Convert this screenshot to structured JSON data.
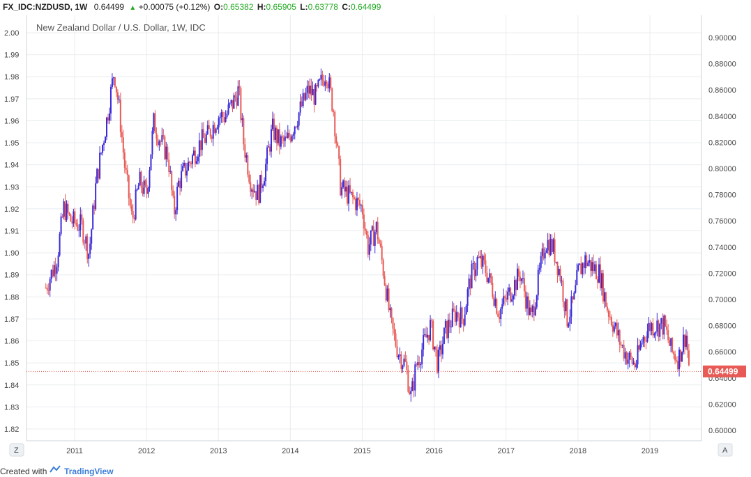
{
  "header": {
    "symbol": "FX_IDC:NZDUSD, 1W",
    "last": "0.64499",
    "change": "+0.00075 (+0.12%)",
    "o_label": "O:",
    "o_value": "0.65382",
    "h_label": "H:",
    "h_value": "0.65905",
    "l_label": "L:",
    "l_value": "0.63778",
    "c_label": "C:",
    "c_value": "0.64499"
  },
  "chart_title": "New Zealand Dollar / U.S. Dollar, 1W, IDC",
  "footer": {
    "created_with": "Created with",
    "brand": "TradingView"
  },
  "buttons": {
    "z": "Z",
    "a": "A"
  },
  "colors": {
    "up": "#3a2ad8",
    "down": "#e85a55",
    "grid": "#e8ecef",
    "price_tag": "#e85a55"
  },
  "chart_data": {
    "type": "candlestick",
    "series": [
      {
        "name": "FX_IDC:NZDUSD, 1W",
        "axis": "right",
        "points": [
          [
            2010.6,
            0.709
          ],
          [
            2010.75,
            0.73
          ],
          [
            2010.85,
            0.77
          ],
          [
            2010.95,
            0.76
          ],
          [
            2011.1,
            0.756
          ],
          [
            2011.2,
            0.735
          ],
          [
            2011.3,
            0.79
          ],
          [
            2011.45,
            0.838
          ],
          [
            2011.55,
            0.875
          ],
          [
            2011.62,
            0.845
          ],
          [
            2011.7,
            0.8
          ],
          [
            2011.8,
            0.76
          ],
          [
            2011.9,
            0.79
          ],
          [
            2012.0,
            0.78
          ],
          [
            2012.1,
            0.835
          ],
          [
            2012.2,
            0.82
          ],
          [
            2012.3,
            0.81
          ],
          [
            2012.38,
            0.765
          ],
          [
            2012.45,
            0.79
          ],
          [
            2012.55,
            0.8
          ],
          [
            2012.65,
            0.81
          ],
          [
            2012.75,
            0.82
          ],
          [
            2012.85,
            0.825
          ],
          [
            2013.0,
            0.84
          ],
          [
            2013.1,
            0.84
          ],
          [
            2013.2,
            0.85
          ],
          [
            2013.28,
            0.86
          ],
          [
            2013.35,
            0.82
          ],
          [
            2013.45,
            0.79
          ],
          [
            2013.55,
            0.78
          ],
          [
            2013.65,
            0.8
          ],
          [
            2013.75,
            0.83
          ],
          [
            2013.85,
            0.82
          ],
          [
            2013.95,
            0.82
          ],
          [
            2014.1,
            0.84
          ],
          [
            2014.25,
            0.86
          ],
          [
            2014.35,
            0.855
          ],
          [
            2014.5,
            0.875
          ],
          [
            2014.6,
            0.845
          ],
          [
            2014.7,
            0.785
          ],
          [
            2014.8,
            0.78
          ],
          [
            2014.9,
            0.775
          ],
          [
            2015.0,
            0.77
          ],
          [
            2015.08,
            0.74
          ],
          [
            2015.2,
            0.755
          ],
          [
            2015.3,
            0.72
          ],
          [
            2015.4,
            0.68
          ],
          [
            2015.5,
            0.66
          ],
          [
            2015.6,
            0.65
          ],
          [
            2015.68,
            0.625
          ],
          [
            2015.75,
            0.65
          ],
          [
            2015.85,
            0.665
          ],
          [
            2015.95,
            0.68
          ],
          [
            2016.05,
            0.65
          ],
          [
            2016.15,
            0.675
          ],
          [
            2016.3,
            0.69
          ],
          [
            2016.4,
            0.685
          ],
          [
            2016.5,
            0.715
          ],
          [
            2016.6,
            0.73
          ],
          [
            2016.7,
            0.725
          ],
          [
            2016.8,
            0.71
          ],
          [
            2016.9,
            0.69
          ],
          [
            2017.0,
            0.7
          ],
          [
            2017.1,
            0.71
          ],
          [
            2017.2,
            0.72
          ],
          [
            2017.3,
            0.695
          ],
          [
            2017.35,
            0.685
          ],
          [
            2017.45,
            0.715
          ],
          [
            2017.55,
            0.745
          ],
          [
            2017.65,
            0.74
          ],
          [
            2017.75,
            0.72
          ],
          [
            2017.85,
            0.685
          ],
          [
            2017.95,
            0.7
          ],
          [
            2018.0,
            0.72
          ],
          [
            2018.1,
            0.73
          ],
          [
            2018.2,
            0.725
          ],
          [
            2018.3,
            0.72
          ],
          [
            2018.4,
            0.695
          ],
          [
            2018.5,
            0.68
          ],
          [
            2018.6,
            0.665
          ],
          [
            2018.7,
            0.655
          ],
          [
            2018.8,
            0.65
          ],
          [
            2018.9,
            0.67
          ],
          [
            2019.0,
            0.68
          ],
          [
            2019.1,
            0.68
          ],
          [
            2019.2,
            0.68
          ],
          [
            2019.3,
            0.66
          ],
          [
            2019.4,
            0.655
          ],
          [
            2019.45,
            0.665
          ],
          [
            2019.5,
            0.675
          ],
          [
            2019.55,
            0.645
          ]
        ]
      }
    ],
    "x_ticks": [
      "2011",
      "2012",
      "2013",
      "2014",
      "2015",
      "2016",
      "2017",
      "2018",
      "2019"
    ],
    "left_ticks": [
      "2.00",
      "1.99",
      "1.98",
      "1.97",
      "1.96",
      "1.95",
      "1.94",
      "1.93",
      "1.92",
      "1.91",
      "1.90",
      "1.89",
      "1.88",
      "1.87",
      "1.86",
      "1.85",
      "1.84",
      "1.83",
      "1.82"
    ],
    "right_ticks": [
      "0.90000",
      "0.88000",
      "0.86000",
      "0.84000",
      "0.82000",
      "0.80000",
      "0.78000",
      "0.76000",
      "0.74000",
      "0.72000",
      "0.70000",
      "0.68000",
      "0.66000",
      "0.64000",
      "0.62000",
      "0.60000"
    ],
    "price_tag": "0.64499"
  }
}
